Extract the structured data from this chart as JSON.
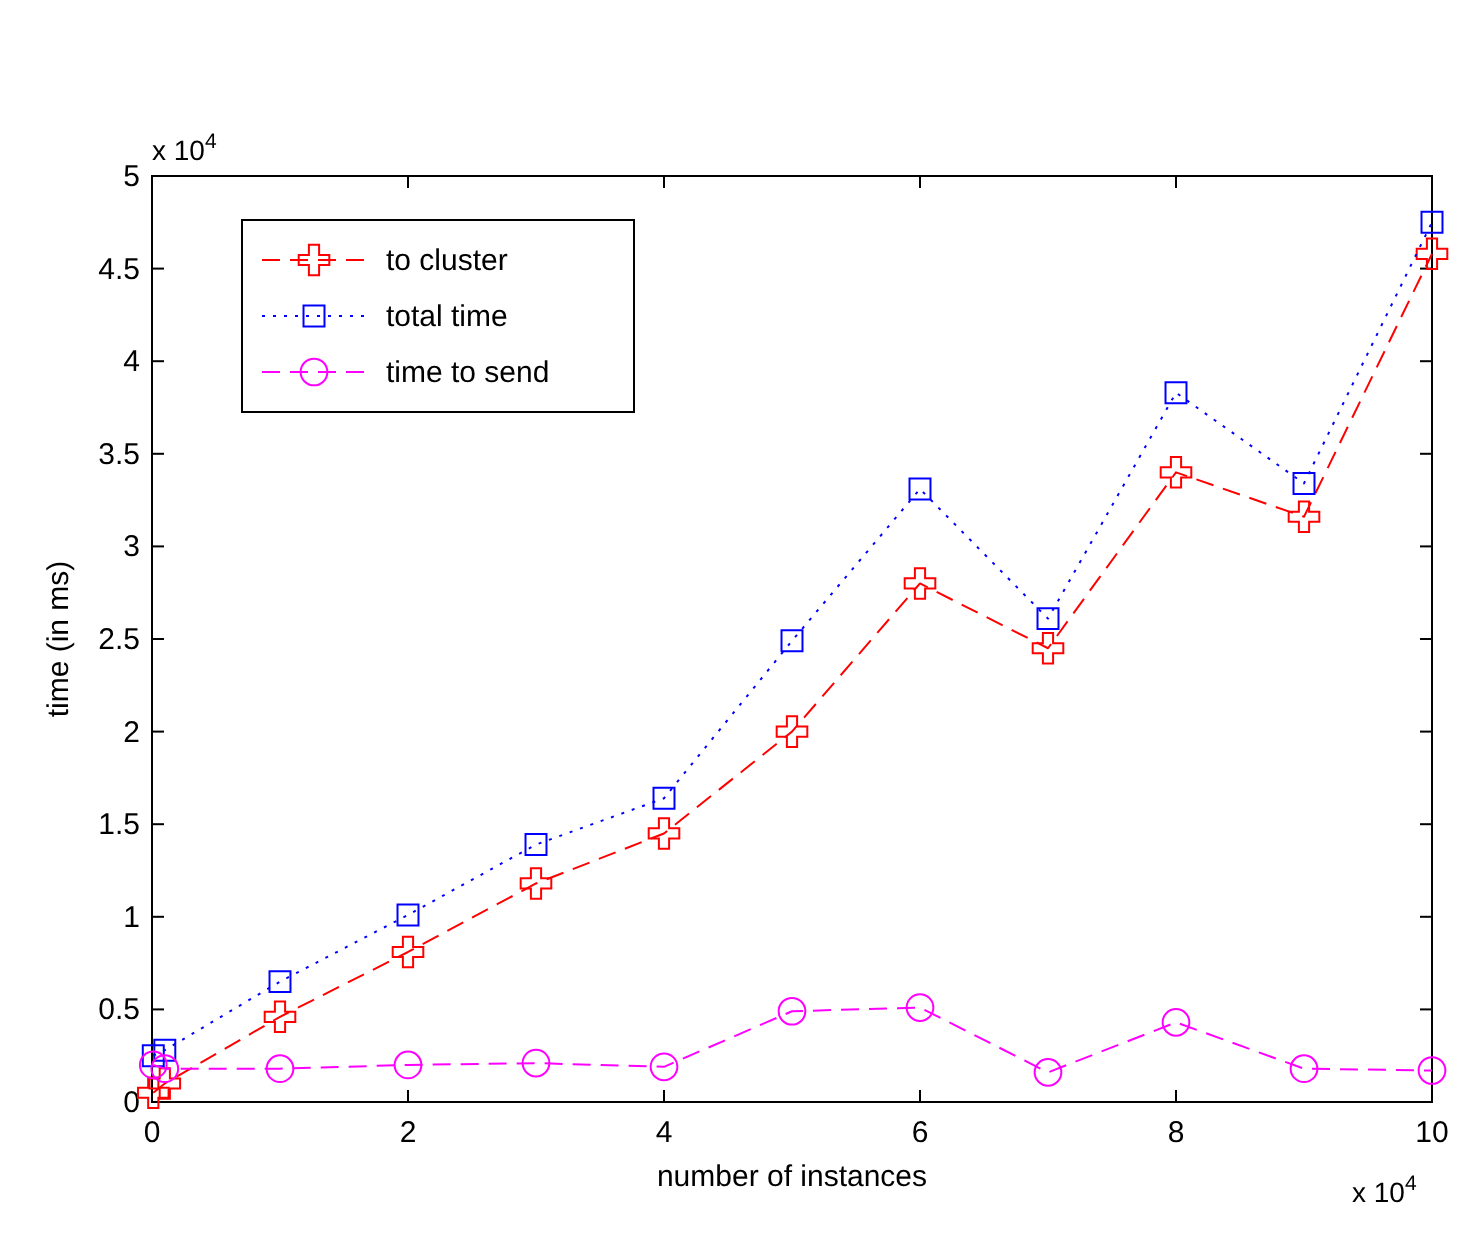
{
  "chart_data": {
    "type": "line",
    "xlabel": "number of instances",
    "ylabel": "time (in ms)",
    "x": [
      0.01,
      0.1,
      1,
      2,
      3,
      4,
      5,
      6,
      7,
      8,
      9,
      10
    ],
    "xlim": [
      0,
      10
    ],
    "xticks": [
      0,
      2,
      4,
      6,
      8,
      10
    ],
    "ylim": [
      0,
      5
    ],
    "yticks": [
      0,
      0.5,
      1,
      1.5,
      2,
      2.5,
      3,
      3.5,
      4,
      4.5,
      5
    ],
    "series": [
      {
        "name": "to cluster",
        "color": "#ff0000",
        "marker": "cross",
        "line_style": "dashed",
        "values": [
          0.05,
          0.1,
          0.46,
          0.81,
          1.18,
          1.45,
          2.0,
          2.8,
          2.45,
          3.4,
          3.16,
          4.58
        ]
      },
      {
        "name": "total time",
        "color": "#0000ff",
        "marker": "square",
        "line_style": "dotted",
        "values": [
          0.25,
          0.28,
          0.65,
          1.01,
          1.39,
          1.64,
          2.49,
          3.31,
          2.61,
          3.83,
          3.34,
          4.75
        ]
      },
      {
        "name": "time to send",
        "color": "#ff00ff",
        "marker": "circle",
        "line_style": "dashed",
        "values": [
          0.2,
          0.18,
          0.18,
          0.2,
          0.21,
          0.19,
          0.49,
          0.51,
          0.16,
          0.43,
          0.18,
          0.17
        ]
      }
    ],
    "legend": "top left",
    "grid": false,
    "annotations": [
      "x 10$^{4}$",
      "x 10$^{4}$"
    ]
  }
}
